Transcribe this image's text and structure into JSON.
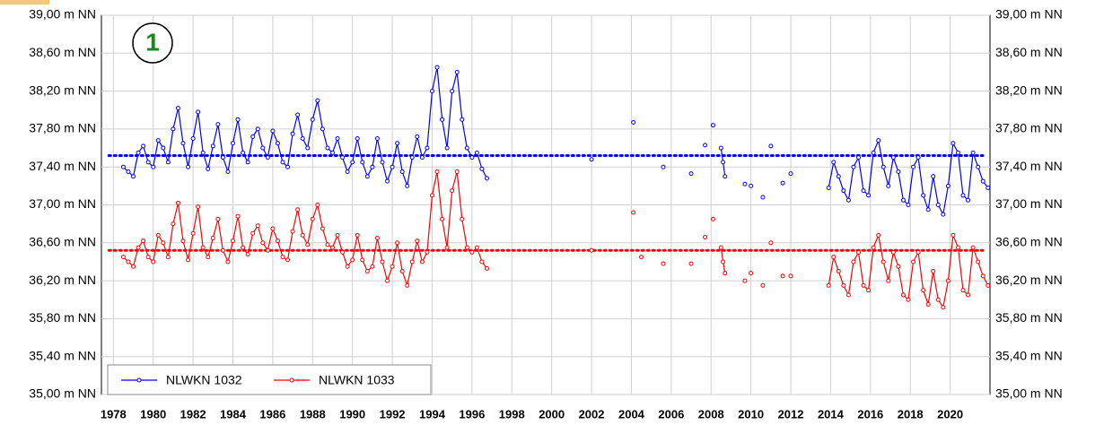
{
  "chart_data": {
    "type": "line",
    "annotation": "1",
    "xlim": [
      1977.4,
      2022
    ],
    "xticks": [
      1978,
      1980,
      1982,
      1984,
      1986,
      1988,
      1990,
      1992,
      1994,
      1996,
      1998,
      2000,
      2002,
      2004,
      2006,
      2008,
      2010,
      2012,
      2014,
      2016,
      2018,
      2020
    ],
    "ylim": [
      35,
      39
    ],
    "yticks": [
      {
        "value": 35.0,
        "label": "35,00 m NN"
      },
      {
        "value": 35.4,
        "label": "35,40 m NN"
      },
      {
        "value": 35.8,
        "label": "35,80 m NN"
      },
      {
        "value": 36.2,
        "label": "36,20 m NN"
      },
      {
        "value": 36.6,
        "label": "36,60 m NN"
      },
      {
        "value": 37.0,
        "label": "37,00 m NN"
      },
      {
        "value": 37.4,
        "label": "37,40 m NN"
      },
      {
        "value": 37.8,
        "label": "37,80 m NN"
      },
      {
        "value": 38.2,
        "label": "38,20 m NN"
      },
      {
        "value": 38.6,
        "label": "38,60 m NN"
      },
      {
        "value": 39.0,
        "label": "39,00 m NN"
      }
    ],
    "grid": true,
    "legend": "lower left",
    "reference_lines": [
      {
        "value": 37.52,
        "color": "#0000ff"
      },
      {
        "value": 36.52,
        "color": "#ff0000"
      }
    ],
    "series": [
      {
        "name": "NLWKN 1032",
        "color": "#0000ff",
        "x": [
          1978.5,
          1978.75,
          1979,
          1979.25,
          1979.5,
          1979.75,
          1980,
          1980.25,
          1980.5,
          1980.75,
          1981,
          1981.25,
          1981.5,
          1981.75,
          1982,
          1982.25,
          1982.5,
          1982.75,
          1983,
          1983.25,
          1983.5,
          1983.75,
          1984,
          1984.25,
          1984.5,
          1984.75,
          1985,
          1985.25,
          1985.5,
          1985.75,
          1986,
          1986.25,
          1986.5,
          1986.75,
          1987,
          1987.25,
          1987.5,
          1987.75,
          1988,
          1988.25,
          1988.5,
          1988.75,
          1989,
          1989.25,
          1989.5,
          1989.75,
          1990,
          1990.25,
          1990.5,
          1990.75,
          1991,
          1991.25,
          1991.5,
          1991.75,
          1992,
          1992.25,
          1992.5,
          1992.75,
          1993,
          1993.25,
          1993.5,
          1993.75,
          1994,
          1994.25,
          1994.5,
          1994.75,
          1995,
          1995.25,
          1995.5,
          1995.75,
          1996,
          1996.25,
          1996.5,
          1996.75,
          null,
          2002,
          null,
          2004.1,
          null,
          2005.6,
          null,
          2007,
          null,
          2007.7,
          null,
          2008.1,
          null,
          2008.5,
          2008.6,
          2008.7,
          null,
          2009.7,
          null,
          2010,
          null,
          2010.6,
          null,
          2011,
          null,
          2011.6,
          null,
          2012,
          null,
          2013.9,
          2014.15,
          2014.4,
          2014.65,
          2014.9,
          2015.15,
          2015.4,
          2015.65,
          2015.9,
          2016.15,
          2016.4,
          2016.65,
          2016.9,
          2017.15,
          2017.4,
          2017.65,
          2017.9,
          2018.15,
          2018.4,
          2018.65,
          2018.9,
          2019.15,
          2019.4,
          2019.65,
          2019.9,
          2020.15,
          2020.4,
          2020.65,
          2020.9,
          2021.15,
          2021.4,
          2021.65,
          2021.9
        ],
        "values": [
          37.4,
          37.35,
          37.3,
          37.55,
          37.62,
          37.45,
          37.4,
          37.68,
          37.6,
          37.45,
          37.8,
          38.02,
          37.65,
          37.4,
          37.7,
          37.98,
          37.55,
          37.38,
          37.62,
          37.85,
          37.5,
          37.35,
          37.65,
          37.9,
          37.55,
          37.45,
          37.72,
          37.8,
          37.6,
          37.5,
          37.78,
          37.65,
          37.45,
          37.4,
          37.75,
          37.95,
          37.7,
          37.6,
          37.9,
          38.1,
          37.8,
          37.6,
          37.55,
          37.7,
          37.5,
          37.35,
          37.45,
          37.7,
          37.45,
          37.3,
          37.4,
          37.7,
          37.45,
          37.25,
          37.4,
          37.65,
          37.35,
          37.2,
          37.5,
          37.72,
          37.5,
          37.6,
          38.2,
          38.45,
          37.9,
          37.6,
          38.2,
          38.4,
          37.9,
          37.6,
          37.5,
          37.55,
          37.38,
          37.28,
          null,
          37.48,
          null,
          37.87,
          null,
          37.4,
          null,
          37.33,
          null,
          37.63,
          null,
          37.84,
          null,
          37.6,
          37.45,
          37.3,
          null,
          37.22,
          null,
          37.2,
          null,
          37.08,
          null,
          37.62,
          null,
          37.23,
          null,
          37.33,
          null,
          37.18,
          37.45,
          37.3,
          37.15,
          37.05,
          37.4,
          37.5,
          37.15,
          37.1,
          37.55,
          37.68,
          37.4,
          37.2,
          37.5,
          37.35,
          37.05,
          37.0,
          37.4,
          37.5,
          37.1,
          36.95,
          37.3,
          37.0,
          36.9,
          37.2,
          37.65,
          37.55,
          37.1,
          37.05,
          37.55,
          37.4,
          37.25,
          37.18
        ]
      },
      {
        "name": "NLWKN 1033",
        "color": "#ff0000",
        "x": [
          1978.5,
          1978.75,
          1979,
          1979.25,
          1979.5,
          1979.75,
          1980,
          1980.25,
          1980.5,
          1980.75,
          1981,
          1981.25,
          1981.5,
          1981.75,
          1982,
          1982.25,
          1982.5,
          1982.75,
          1983,
          1983.25,
          1983.5,
          1983.75,
          1984,
          1984.25,
          1984.5,
          1984.75,
          1985,
          1985.25,
          1985.5,
          1985.75,
          1986,
          1986.25,
          1986.5,
          1986.75,
          1987,
          1987.25,
          1987.5,
          1987.75,
          1988,
          1988.25,
          1988.5,
          1988.75,
          1989,
          1989.25,
          1989.5,
          1989.75,
          1990,
          1990.25,
          1990.5,
          1990.75,
          1991,
          1991.25,
          1991.5,
          1991.75,
          1992,
          1992.25,
          1992.5,
          1992.75,
          1993,
          1993.25,
          1993.5,
          1993.75,
          1994,
          1994.25,
          1994.5,
          1994.75,
          1995,
          1995.25,
          1995.5,
          1995.75,
          1996,
          1996.25,
          1996.5,
          1996.75,
          null,
          2002,
          null,
          2004.1,
          null,
          2004.5,
          null,
          2005.6,
          null,
          2007,
          null,
          2007.7,
          null,
          2008.1,
          null,
          2008.5,
          2008.6,
          2008.7,
          null,
          2009.7,
          null,
          2010,
          null,
          2010.6,
          null,
          2011,
          null,
          2011.6,
          null,
          2012,
          null,
          2013.9,
          2014.15,
          2014.4,
          2014.65,
          2014.9,
          2015.15,
          2015.4,
          2015.65,
          2015.9,
          2016.15,
          2016.4,
          2016.65,
          2016.9,
          2017.15,
          2017.4,
          2017.65,
          2017.9,
          2018.15,
          2018.4,
          2018.65,
          2018.9,
          2019.15,
          2019.4,
          2019.65,
          2019.9,
          2020.15,
          2020.4,
          2020.65,
          2020.9,
          2021.15,
          2021.4,
          2021.65,
          2021.9
        ],
        "values": [
          36.45,
          36.4,
          36.35,
          36.55,
          36.62,
          36.45,
          36.4,
          36.68,
          36.6,
          36.45,
          36.8,
          37.02,
          36.62,
          36.42,
          36.7,
          36.98,
          36.55,
          36.45,
          36.65,
          36.85,
          36.52,
          36.4,
          36.62,
          36.88,
          36.55,
          36.48,
          36.7,
          36.78,
          36.6,
          36.52,
          36.75,
          36.62,
          36.45,
          36.42,
          36.72,
          36.95,
          36.68,
          36.58,
          36.85,
          37.0,
          36.75,
          36.58,
          36.55,
          36.68,
          36.5,
          36.35,
          36.42,
          36.68,
          36.42,
          36.3,
          36.35,
          36.65,
          36.4,
          36.2,
          36.35,
          36.6,
          36.3,
          36.15,
          36.4,
          36.62,
          36.4,
          36.5,
          37.1,
          37.35,
          36.85,
          36.55,
          37.15,
          37.35,
          36.85,
          36.55,
          36.5,
          36.55,
          36.4,
          36.33,
          null,
          36.52,
          null,
          36.92,
          null,
          36.45,
          null,
          36.38,
          null,
          36.38,
          null,
          36.66,
          null,
          36.85,
          null,
          36.55,
          36.4,
          36.28,
          null,
          36.2,
          null,
          36.28,
          null,
          36.15,
          null,
          36.6,
          null,
          36.25,
          null,
          36.25,
          null,
          36.15,
          36.45,
          36.3,
          36.15,
          36.05,
          36.4,
          36.5,
          36.15,
          36.1,
          36.55,
          36.68,
          36.4,
          36.2,
          36.5,
          36.35,
          36.05,
          36.0,
          36.4,
          36.5,
          36.1,
          35.95,
          36.3,
          36.0,
          35.92,
          36.2,
          36.68,
          36.55,
          36.1,
          36.05,
          36.55,
          36.4,
          36.25,
          36.15
        ]
      }
    ]
  }
}
